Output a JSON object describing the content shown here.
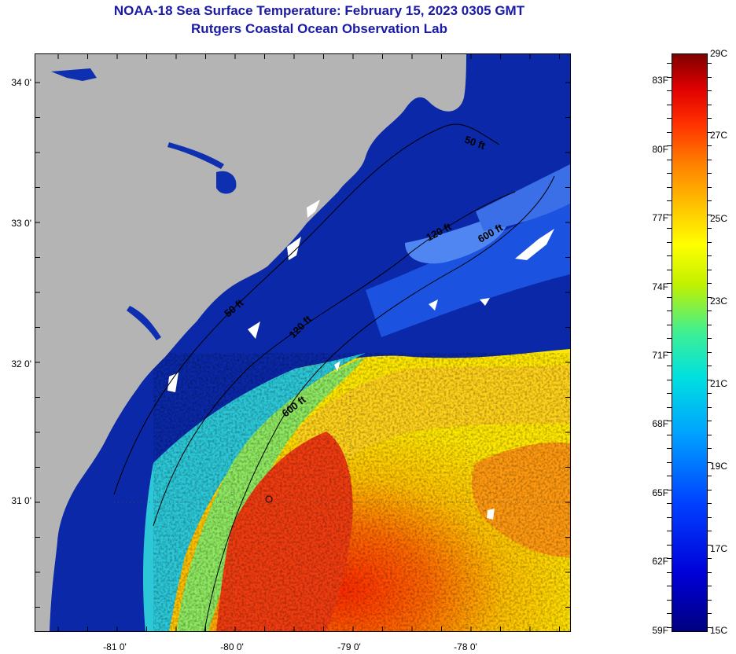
{
  "title": {
    "line1": "NOAA-18 Sea Surface Temperature:  February 15, 2023 0305 GMT",
    "line2": "Rutgers Coastal Ocean Observation Lab"
  },
  "axes": {
    "lat_labels": [
      "34 0'",
      "33 0'",
      "32 0'",
      "31 0'"
    ],
    "lon_labels": [
      "-81 0'",
      "-80 0'",
      "-79 0'",
      "-78 0'"
    ]
  },
  "contour_labels": {
    "c50_north": "50 ft",
    "c120_north": "120 ft",
    "c600_north": "600 ft",
    "c50_mid": "50 ft",
    "c120_mid": "120 ft",
    "c600_south": "600 ft"
  },
  "colorbar": {
    "f_labels": [
      "83F",
      "80F",
      "77F",
      "74F",
      "71F",
      "68F",
      "65F",
      "62F",
      "59F"
    ],
    "c_labels": [
      "29C",
      "27C",
      "25C",
      "23C",
      "21C",
      "19C",
      "17C",
      "15C"
    ],
    "colors": {
      "min": "#000080",
      "cold": "#0000d8",
      "cool": "#00a0ff",
      "mid": "#40f090",
      "warm": "#ffff00",
      "hot": "#ff8000",
      "max": "#800000"
    }
  },
  "map_colors": {
    "land": "#b4b4b4",
    "shelf_water": "#0d2fb0",
    "text": "#1a1aa6"
  }
}
